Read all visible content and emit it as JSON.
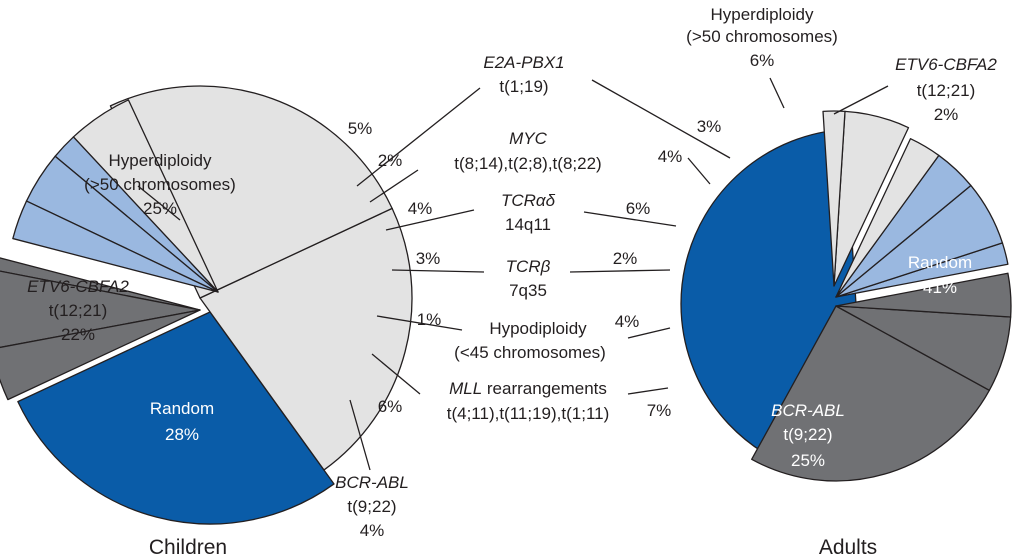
{
  "chart_data": [
    {
      "type": "pie",
      "title": "Children",
      "slices": [
        {
          "key": "random",
          "label": "Random",
          "value": 28,
          "pct": "28%",
          "color": "#0a5ca8"
        },
        {
          "key": "etv6",
          "label": "ETV6-CBFA2",
          "sub": "t(12;21)",
          "value": 22,
          "pct": "22%",
          "color": "#e3e3e3"
        },
        {
          "key": "hyper",
          "label": "Hyperdiploidy",
          "sub": "(>50 chromosomes)",
          "value": 25,
          "pct": "25%",
          "color": "#e3e3e3"
        },
        {
          "key": "e2a",
          "label": "E2A-PBX1",
          "value": 5,
          "pct": "5%",
          "color": "#e3e3e3"
        },
        {
          "key": "myc",
          "label": "MYC",
          "value": 2,
          "pct": "2%",
          "color": "#9ab8e0"
        },
        {
          "key": "tcrad",
          "label": "TCRαδ",
          "value": 4,
          "pct": "4%",
          "color": "#9ab8e0"
        },
        {
          "key": "tcrb",
          "label": "TCRβ",
          "value": 3,
          "pct": "3%",
          "color": "#9ab8e0"
        },
        {
          "key": "hypo",
          "label": "Hypodiploidy",
          "value": 1,
          "pct": "1%",
          "color": "#707174"
        },
        {
          "key": "mll",
          "label": "MLL rearrangements",
          "value": 6,
          "pct": "6%",
          "color": "#707174"
        },
        {
          "key": "bcr",
          "label": "BCR-ABL",
          "sub": "t(9;22)",
          "value": 4,
          "pct": "4%",
          "color": "#707174"
        }
      ]
    },
    {
      "type": "pie",
      "title": "Adults",
      "slices": [
        {
          "key": "random",
          "label": "Random",
          "value": 41,
          "pct": "41%",
          "color": "#0a5ca8"
        },
        {
          "key": "bcr",
          "label": "BCR-ABL",
          "sub": "t(9;22)",
          "value": 25,
          "pct": "25%",
          "color": "#707174"
        },
        {
          "key": "mll",
          "label": "MLL rearrangements",
          "value": 7,
          "pct": "7%",
          "color": "#707174"
        },
        {
          "key": "hypo",
          "label": "Hypodiploidy",
          "value": 4,
          "pct": "4%",
          "color": "#707174"
        },
        {
          "key": "tcrb",
          "label": "TCRβ",
          "value": 2,
          "pct": "2%",
          "color": "#9ab8e0"
        },
        {
          "key": "tcrad",
          "label": "TCRαδ",
          "value": 6,
          "pct": "6%",
          "color": "#9ab8e0"
        },
        {
          "key": "myc",
          "label": "MYC",
          "value": 4,
          "pct": "4%",
          "color": "#9ab8e0"
        },
        {
          "key": "e2a",
          "label": "E2A-PBX1",
          "value": 3,
          "pct": "3%",
          "color": "#e3e3e3"
        },
        {
          "key": "hyper",
          "label": "Hyperdiploidy",
          "sub": "(>50 chromosomes)",
          "value": 6,
          "pct": "6%",
          "color": "#e3e3e3"
        },
        {
          "key": "etv6",
          "label": "ETV6-CBFA2",
          "sub": "t(12;21)",
          "value": 2,
          "pct": "2%",
          "color": "#e3e3e3"
        }
      ]
    }
  ],
  "center_labels": {
    "e2a": {
      "name": "E2A-PBX1",
      "sub": "t(1;19)"
    },
    "myc": {
      "name": "MYC",
      "sub": "t(8;14),t(2;8),t(8;22)"
    },
    "tcrad": {
      "name": "TCRαδ",
      "sub": "14q11"
    },
    "tcrb": {
      "name": "TCRβ",
      "sub": "7q35"
    },
    "hypo": {
      "name": "Hypodiploidy",
      "sub": "(<45 chromosomes)"
    },
    "mll": {
      "name": "MLL",
      "name_rest": " rearrangements",
      "sub": "t(4;11),t(11;19),t(1;11)"
    }
  },
  "children_labels": {
    "hyper": {
      "name": "Hyperdiploidy",
      "sub": "(>50 chromosomes)",
      "pct": "25%"
    },
    "etv6": {
      "name": "ETV6-CBFA2",
      "sub": "t(12;21)",
      "pct": "22%"
    },
    "random": {
      "name": "Random",
      "pct": "28%"
    },
    "bcr": {
      "name": "BCR-ABL",
      "sub": "t(9;22)",
      "pct": "4%"
    },
    "e2a_pct": "5%",
    "myc_pct": "2%",
    "tcrad_pct": "4%",
    "tcrb_pct": "3%",
    "hypo_pct": "1%",
    "mll_pct": "6%"
  },
  "adults_labels": {
    "hyper": {
      "name": "Hyperdiploidy",
      "sub": "(>50 chromosomes)",
      "pct": "6%"
    },
    "etv6": {
      "name": "ETV6-CBFA2",
      "sub": "t(12;21)",
      "pct": "2%"
    },
    "random": {
      "name": "Random",
      "pct": "41%"
    },
    "bcr": {
      "name": "BCR-ABL",
      "sub": "t(9;22)",
      "pct": "25%"
    },
    "e2a_pct": "3%",
    "myc_pct": "4%",
    "tcrad_pct": "6%",
    "tcrb_pct": "2%",
    "hypo_pct": "4%",
    "mll_pct": "7%"
  },
  "captions": {
    "children": "Children",
    "adults": "Adults"
  }
}
